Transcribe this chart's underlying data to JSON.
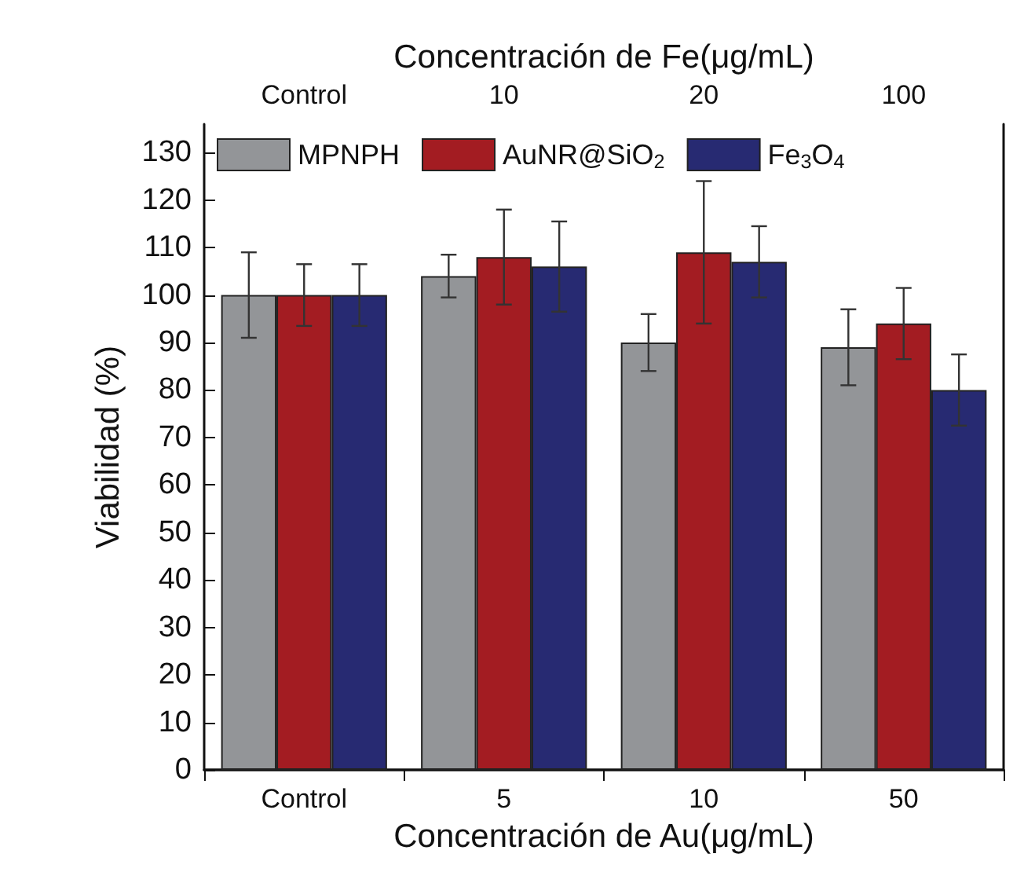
{
  "chart_data": {
    "type": "bar",
    "xlabel": "Concentración de Au(μg/mL)",
    "x2label": "Concentración de Fe(μg/mL)",
    "ylabel": "Viabilidad (%)",
    "categories": [
      "Control",
      "5",
      "10",
      "50"
    ],
    "annotations": [
      "Control",
      "10",
      "20",
      "100"
    ],
    "series": [
      {
        "name": "MPNPH",
        "color": "#939598",
        "values": [
          100,
          104,
          90,
          89
        ],
        "errors": [
          9,
          4.5,
          6,
          8
        ]
      },
      {
        "name": "AuNR@SiO$_{2}$",
        "color": "#a31c22",
        "values": [
          100,
          108,
          109,
          94
        ],
        "errors": [
          6.5,
          10,
          15,
          7.5
        ]
      },
      {
        "name": "Fe$_{3}$O$_{4}$",
        "color": "#272a72",
        "values": [
          100,
          106,
          107,
          80
        ],
        "errors": [
          6.5,
          9.5,
          7.5,
          7.5
        ]
      }
    ],
    "ylim": [
      0,
      136
    ],
    "yticks": [
      0,
      10,
      20,
      30,
      40,
      50,
      60,
      70,
      80,
      90,
      100,
      110,
      120,
      130
    ],
    "grid": false,
    "legend": "top"
  }
}
